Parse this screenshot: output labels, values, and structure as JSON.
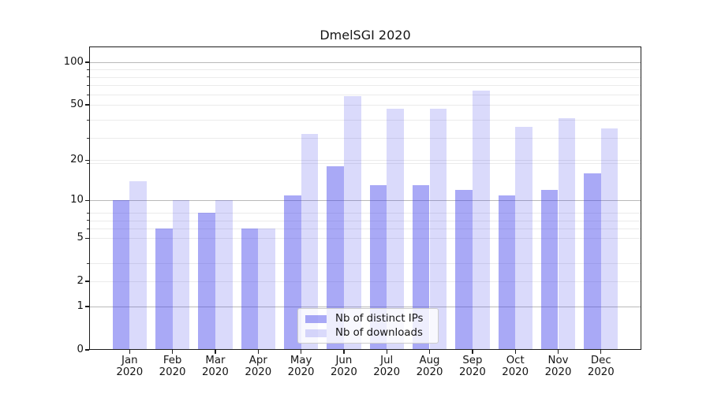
{
  "chart_data": {
    "type": "bar",
    "title": "DmelSGI 2020",
    "categories": [
      "Jan",
      "Feb",
      "Mar",
      "Apr",
      "May",
      "Jun",
      "Jul",
      "Aug",
      "Sep",
      "Oct",
      "Nov",
      "Dec"
    ],
    "category_year": "2020",
    "series": [
      {
        "key": "distinct-ips",
        "name": "Nb of distinct IPs",
        "color": "rgba(60,60,235,0.44)",
        "values": [
          10,
          6,
          8,
          6,
          11,
          18,
          13,
          13,
          12,
          11,
          12,
          16
        ]
      },
      {
        "key": "downloads",
        "name": "Nb of downloads",
        "color": "rgba(60,60,235,0.19)",
        "values": [
          14,
          10,
          10,
          6,
          31,
          58,
          47,
          47,
          63,
          35,
          40,
          34
        ]
      }
    ],
    "yscale": "log1p",
    "ylim": [
      0,
      128
    ],
    "yticks": [
      0,
      1,
      2,
      5,
      10,
      20,
      50,
      100
    ],
    "ytick_labels": [
      "0",
      "1",
      "2",
      "5",
      "10",
      "20",
      "50",
      "100"
    ],
    "emphasized_gridlines": [
      1,
      10,
      100
    ],
    "minor_gridlines_at": [
      3,
      6,
      7,
      8,
      19,
      29,
      39,
      59,
      69,
      79,
      89
    ],
    "grid": true,
    "legend_position": "lower-center",
    "colors": {
      "bar_distinct_ips": "rgba(60,60,235,0.44)",
      "bar_downloads": "rgba(60,60,235,0.19)",
      "grid_dark": "#b9b9b9",
      "grid_light": "#ebebeb",
      "spine": "#1c1c1c",
      "text": "#151515",
      "legend_border": "#cccccc",
      "legend_bg": "rgba(255,255,255,0.8)"
    }
  }
}
